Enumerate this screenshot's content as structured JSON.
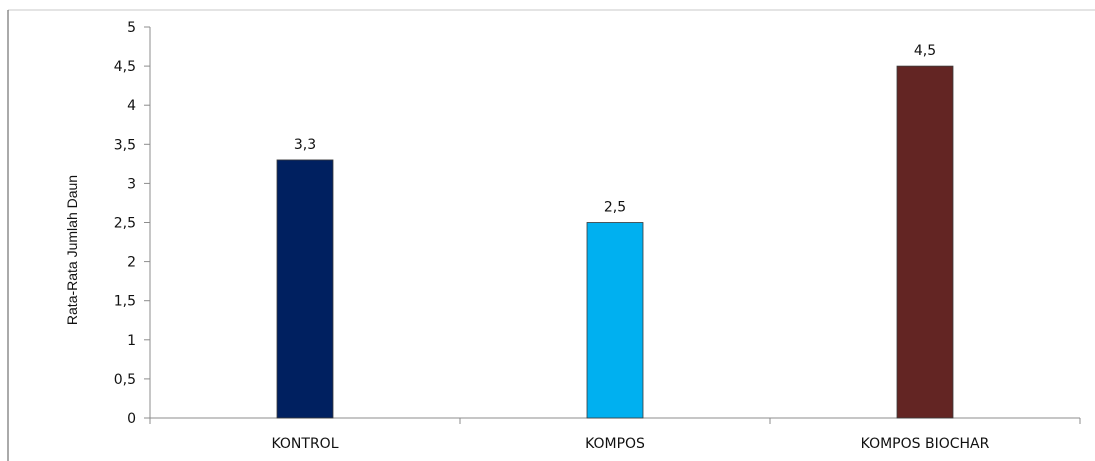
{
  "chart_data": {
    "type": "bar",
    "categories": [
      "KONTROL",
      "KOMPOS",
      "KOMPOS BIOCHAR"
    ],
    "values": [
      3.3,
      2.5,
      4.5
    ],
    "data_labels": [
      "3,3",
      "2,5",
      "4,5"
    ],
    "bar_colors": [
      "#002060",
      "#00b0f0",
      "#632523"
    ],
    "title": "",
    "xlabel": "",
    "ylabel": "Rata-Rata Jumlah Daun",
    "ylim": [
      0,
      5
    ],
    "y_ticks": [
      0,
      0.5,
      1,
      1.5,
      2,
      2.5,
      3,
      3.5,
      4,
      4.5,
      5
    ],
    "y_tick_labels": [
      "0",
      "0,5",
      "1",
      "1,5",
      "2",
      "2,5",
      "3",
      "3,5",
      "4",
      "4,5",
      "5"
    ],
    "grid": false,
    "legend": "none"
  }
}
